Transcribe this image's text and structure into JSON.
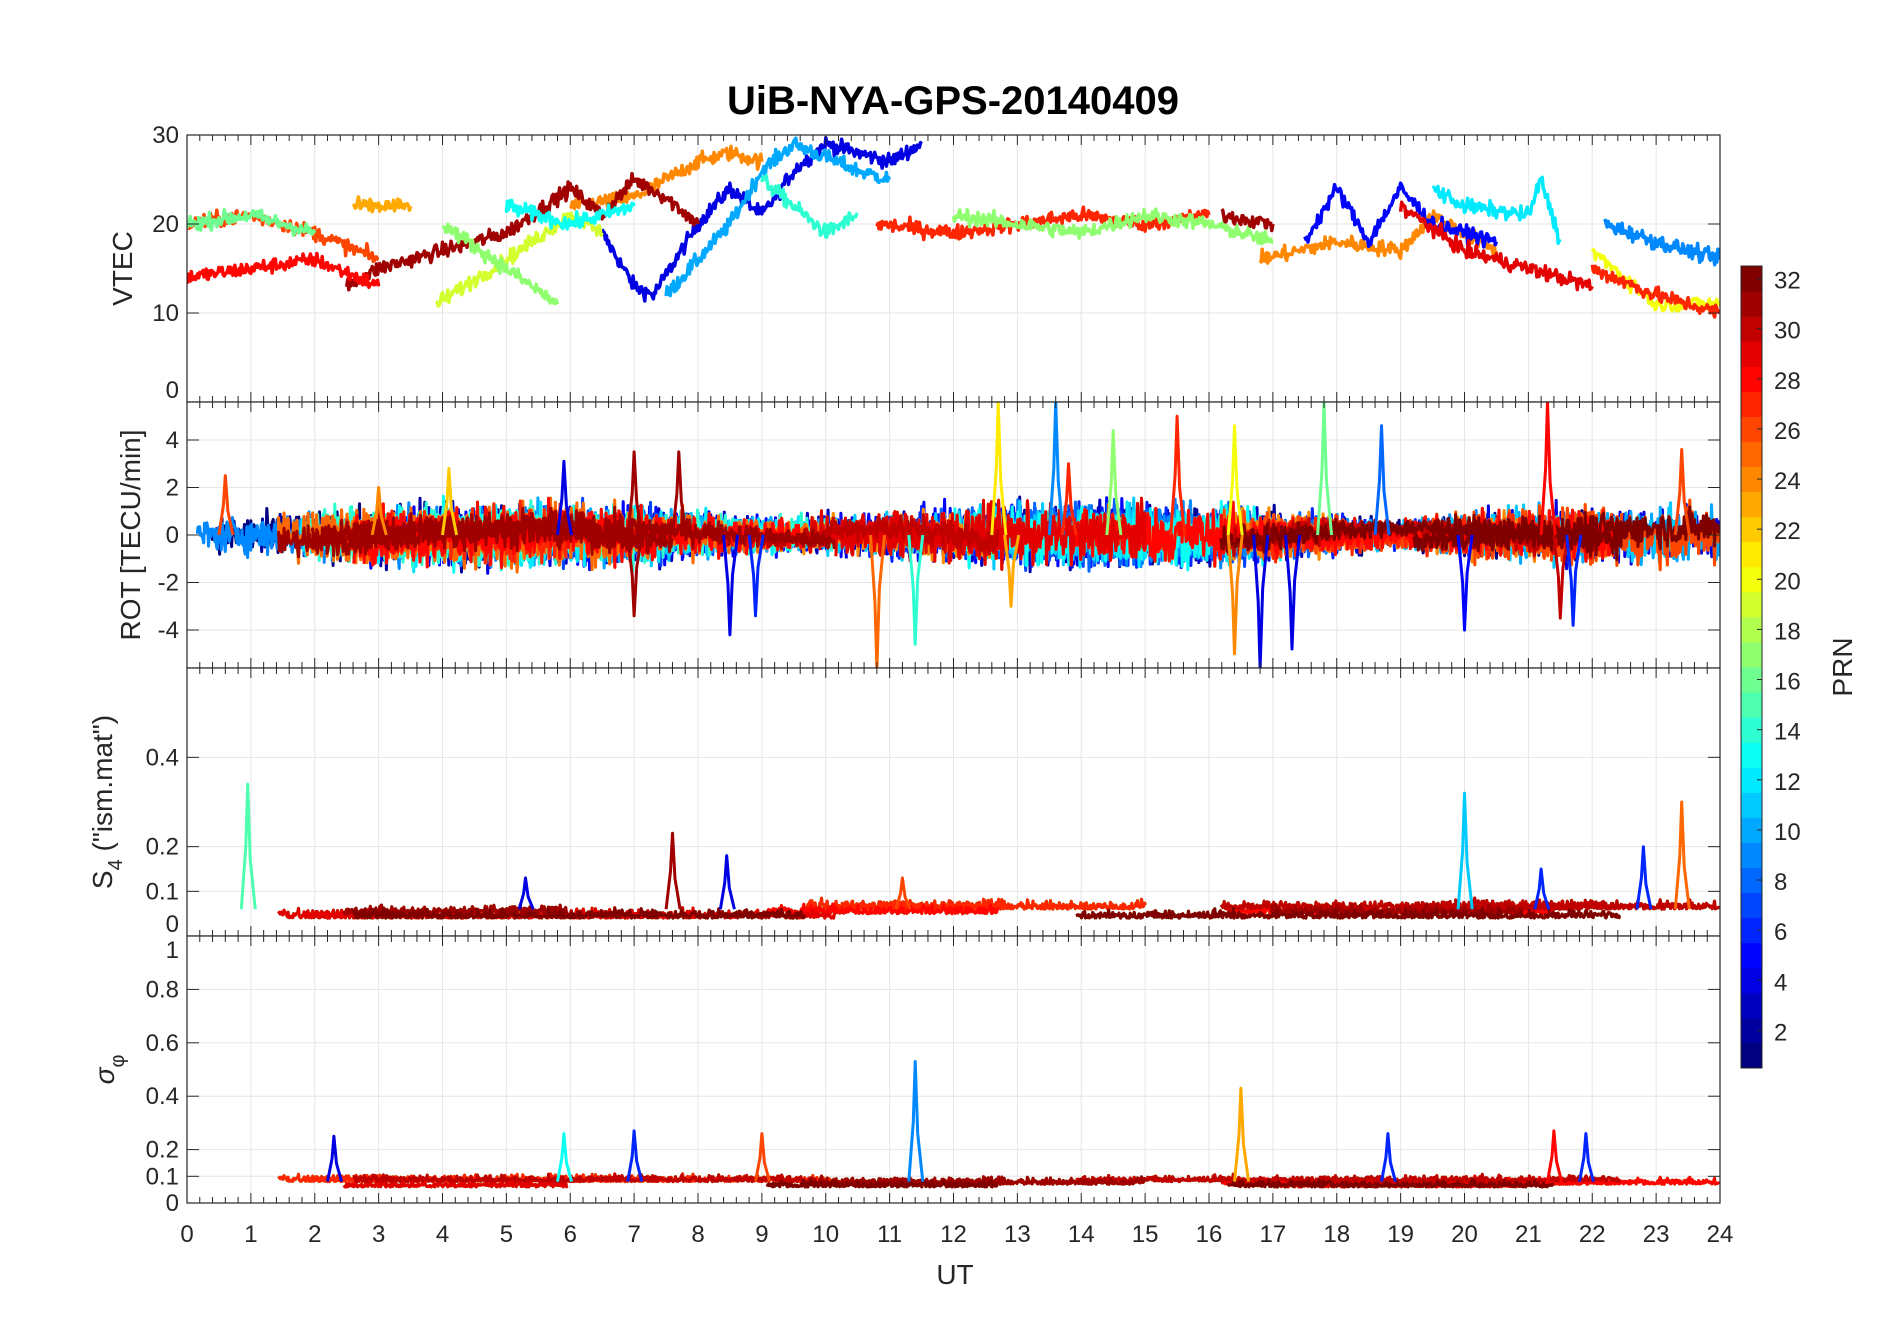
{
  "chart_data": {
    "type": "line",
    "title": "UiB-NYA-GPS-20140409",
    "xlabel": "UT",
    "xlim": [
      0,
      24
    ],
    "xticks": [
      0,
      1,
      2,
      3,
      4,
      5,
      6,
      7,
      8,
      9,
      10,
      11,
      12,
      13,
      14,
      15,
      16,
      17,
      18,
      19,
      20,
      21,
      22,
      23,
      24
    ],
    "grid": true,
    "colorbar": {
      "label": "PRN",
      "range": [
        1,
        32
      ],
      "ticks": [
        2,
        4,
        6,
        8,
        10,
        12,
        14,
        16,
        18,
        20,
        22,
        24,
        26,
        28,
        30,
        32
      ],
      "colormap": "jet",
      "placement": "right"
    },
    "panels": [
      {
        "id": "vtec",
        "ylabel": "VTEC",
        "ylim": [
          0,
          30
        ],
        "yticks": [
          0,
          10,
          20,
          30
        ],
        "noise": 0.6,
        "tracks": [
          {
            "prn": 4,
            "points": [
              [
                6.5,
                19
              ],
              [
                7,
                13
              ],
              [
                7.3,
                12
              ],
              [
                8,
                20
              ],
              [
                8.5,
                24
              ],
              [
                9,
                21
              ],
              [
                9.5,
                26
              ],
              [
                10,
                29
              ],
              [
                11,
                27
              ],
              [
                11.5,
                29
              ]
            ]
          },
          {
            "prn": 10,
            "points": [
              [
                7.5,
                12
              ],
              [
                8.5,
                20
              ],
              [
                9,
                26
              ],
              [
                9.5,
                29
              ],
              [
                10.5,
                26
              ],
              [
                11,
                25
              ]
            ]
          },
          {
            "prn": 14,
            "points": [
              [
                9,
                25
              ],
              [
                9.5,
                22
              ],
              [
                10,
                19
              ],
              [
                10.5,
                21
              ]
            ]
          },
          {
            "prn": 24,
            "points": [
              [
                6,
                22
              ],
              [
                7,
                23
              ],
              [
                8,
                27
              ],
              [
                8.5,
                28
              ],
              [
                9,
                27
              ]
            ]
          },
          {
            "prn": 31,
            "points": [
              [
                2.5,
                13
              ],
              [
                3,
                15
              ],
              [
                4,
                17
              ],
              [
                5,
                19
              ],
              [
                6,
                24
              ],
              [
                6.5,
                21
              ],
              [
                7,
                25
              ],
              [
                7.5,
                23
              ],
              [
                8,
                20
              ]
            ]
          },
          {
            "prn": 28,
            "points": [
              [
                0,
                14
              ],
              [
                1,
                15
              ],
              [
                2,
                16
              ],
              [
                3,
                13
              ]
            ]
          },
          {
            "prn": 26,
            "points": [
              [
                0,
                20
              ],
              [
                1,
                21
              ],
              [
                2,
                19
              ],
              [
                3,
                16
              ]
            ]
          },
          {
            "prn": 16,
            "points": [
              [
                0,
                20
              ],
              [
                1,
                21
              ],
              [
                2,
                19
              ]
            ]
          },
          {
            "prn": 19,
            "points": [
              [
                3.9,
                11
              ],
              [
                5,
                16
              ],
              [
                6,
                21
              ],
              [
                6.5,
                19
              ]
            ]
          },
          {
            "prn": 17,
            "points": [
              [
                4,
                20
              ],
              [
                5,
                15
              ],
              [
                5.8,
                11
              ]
            ]
          },
          {
            "prn": 23,
            "points": [
              [
                2.6,
                22
              ],
              [
                3.5,
                22
              ]
            ]
          },
          {
            "prn": 13,
            "points": [
              [
                5,
                22
              ],
              [
                6,
                20
              ],
              [
                7,
                22
              ]
            ]
          },
          {
            "prn": 27,
            "points": [
              [
                10.8,
                20
              ],
              [
                12,
                19
              ],
              [
                13,
                20
              ],
              [
                14,
                21
              ],
              [
                15,
                20
              ],
              [
                16,
                21
              ]
            ]
          },
          {
            "prn": 17,
            "points": [
              [
                12,
                21
              ],
              [
                13,
                20
              ],
              [
                14,
                19
              ],
              [
                15,
                21
              ],
              [
                16,
                20
              ],
              [
                17,
                18
              ]
            ]
          },
          {
            "prn": 31,
            "points": [
              [
                16.2,
                21
              ],
              [
                17,
                20
              ]
            ]
          },
          {
            "prn": 24,
            "points": [
              [
                16.8,
                16
              ],
              [
                18,
                18
              ],
              [
                19,
                17
              ],
              [
                19.5,
                21
              ],
              [
                20.5,
                17
              ]
            ]
          },
          {
            "prn": 5,
            "points": [
              [
                17.5,
                18
              ],
              [
                18,
                24
              ],
              [
                18.5,
                18
              ],
              [
                19,
                24
              ],
              [
                19.5,
                20
              ],
              [
                20.5,
                18
              ]
            ]
          },
          {
            "prn": 12,
            "points": [
              [
                19.5,
                24
              ],
              [
                20,
                22
              ],
              [
                21,
                21
              ],
              [
                21.2,
                25
              ],
              [
                21.5,
                18
              ]
            ]
          },
          {
            "prn": 29,
            "points": [
              [
                19,
                22
              ],
              [
                20,
                17
              ],
              [
                21,
                15
              ],
              [
                22,
                13
              ]
            ]
          },
          {
            "prn": 9,
            "points": [
              [
                22.2,
                20
              ],
              [
                23,
                18
              ],
              [
                24,
                16
              ]
            ]
          },
          {
            "prn": 20,
            "points": [
              [
                22,
                17
              ],
              [
                23,
                11
              ],
              [
                24,
                11
              ]
            ]
          },
          {
            "prn": 27,
            "points": [
              [
                22,
                15
              ],
              [
                23,
                12
              ],
              [
                24,
                10
              ]
            ]
          }
        ]
      },
      {
        "id": "rot",
        "ylabel": "ROT [TECU/min]",
        "ylim": [
          -5.6,
          5.6
        ],
        "yticks": [
          -4,
          -2,
          0,
          2,
          4
        ],
        "noise": 0.7,
        "spikes": [
          [
            0.6,
            2.5,
            26
          ],
          [
            3.0,
            2.0,
            24
          ],
          [
            4.1,
            2.8,
            22
          ],
          [
            5.9,
            3.1,
            4
          ],
          [
            7.0,
            3.5,
            31
          ],
          [
            7.0,
            -3.4,
            31
          ],
          [
            7.7,
            3.5,
            31
          ],
          [
            8.5,
            -4.2,
            4
          ],
          [
            8.9,
            -3.4,
            6
          ],
          [
            10.8,
            -5.6,
            25
          ],
          [
            11.4,
            -4.6,
            14
          ],
          [
            12.7,
            5.6,
            21
          ],
          [
            12.9,
            -3.0,
            23
          ],
          [
            13.6,
            5.6,
            9
          ],
          [
            13.8,
            3.0,
            27
          ],
          [
            14.5,
            4.4,
            17
          ],
          [
            15.5,
            5.0,
            27
          ],
          [
            16.4,
            -5.0,
            24
          ],
          [
            16.4,
            4.6,
            20
          ],
          [
            16.8,
            -5.6,
            4
          ],
          [
            17.3,
            -4.8,
            4
          ],
          [
            17.8,
            5.6,
            16
          ],
          [
            18.7,
            4.6,
            8
          ],
          [
            20.0,
            -4.0,
            5
          ],
          [
            21.3,
            5.6,
            28
          ],
          [
            21.5,
            -3.5,
            30
          ],
          [
            21.7,
            -3.8,
            6
          ],
          [
            23.4,
            3.6,
            26
          ]
        ]
      },
      {
        "id": "s4",
        "ylabel": "S4 (\"ism.mat\")",
        "ylabel_main": "S",
        "ylabel_sub": "4",
        "ylabel_rest": " (\"ism.mat\")",
        "ylim": [
          0,
          0.6
        ],
        "yticks": [
          0,
          0.1,
          0.2,
          0.4
        ],
        "baseline": 0.06,
        "noise": 0.012,
        "spikes": [
          [
            0.95,
            0.34,
            15
          ],
          [
            7.6,
            0.23,
            31
          ],
          [
            8.45,
            0.18,
            4
          ],
          [
            5.3,
            0.13,
            4
          ],
          [
            20.0,
            0.32,
            11
          ],
          [
            23.4,
            0.3,
            25
          ],
          [
            22.8,
            0.2,
            6
          ],
          [
            11.2,
            0.13,
            26
          ],
          [
            21.2,
            0.15,
            6
          ]
        ]
      },
      {
        "id": "sigma",
        "ylabel": "σφ",
        "ylabel_main": "σ",
        "ylabel_sub": "φ",
        "ylim": [
          0,
          1
        ],
        "yticks": [
          0,
          0.1,
          0.2,
          0.4,
          0.6,
          0.8,
          1
        ],
        "baseline": 0.08,
        "noise": 0.015,
        "spikes": [
          [
            11.4,
            0.53,
            9
          ],
          [
            16.5,
            0.43,
            23
          ],
          [
            21.4,
            0.27,
            28
          ],
          [
            7.0,
            0.27,
            6
          ],
          [
            9.0,
            0.26,
            26
          ],
          [
            18.8,
            0.26,
            6
          ],
          [
            2.3,
            0.25,
            4
          ],
          [
            5.9,
            0.26,
            13
          ],
          [
            21.9,
            0.26,
            6
          ]
        ]
      }
    ]
  }
}
